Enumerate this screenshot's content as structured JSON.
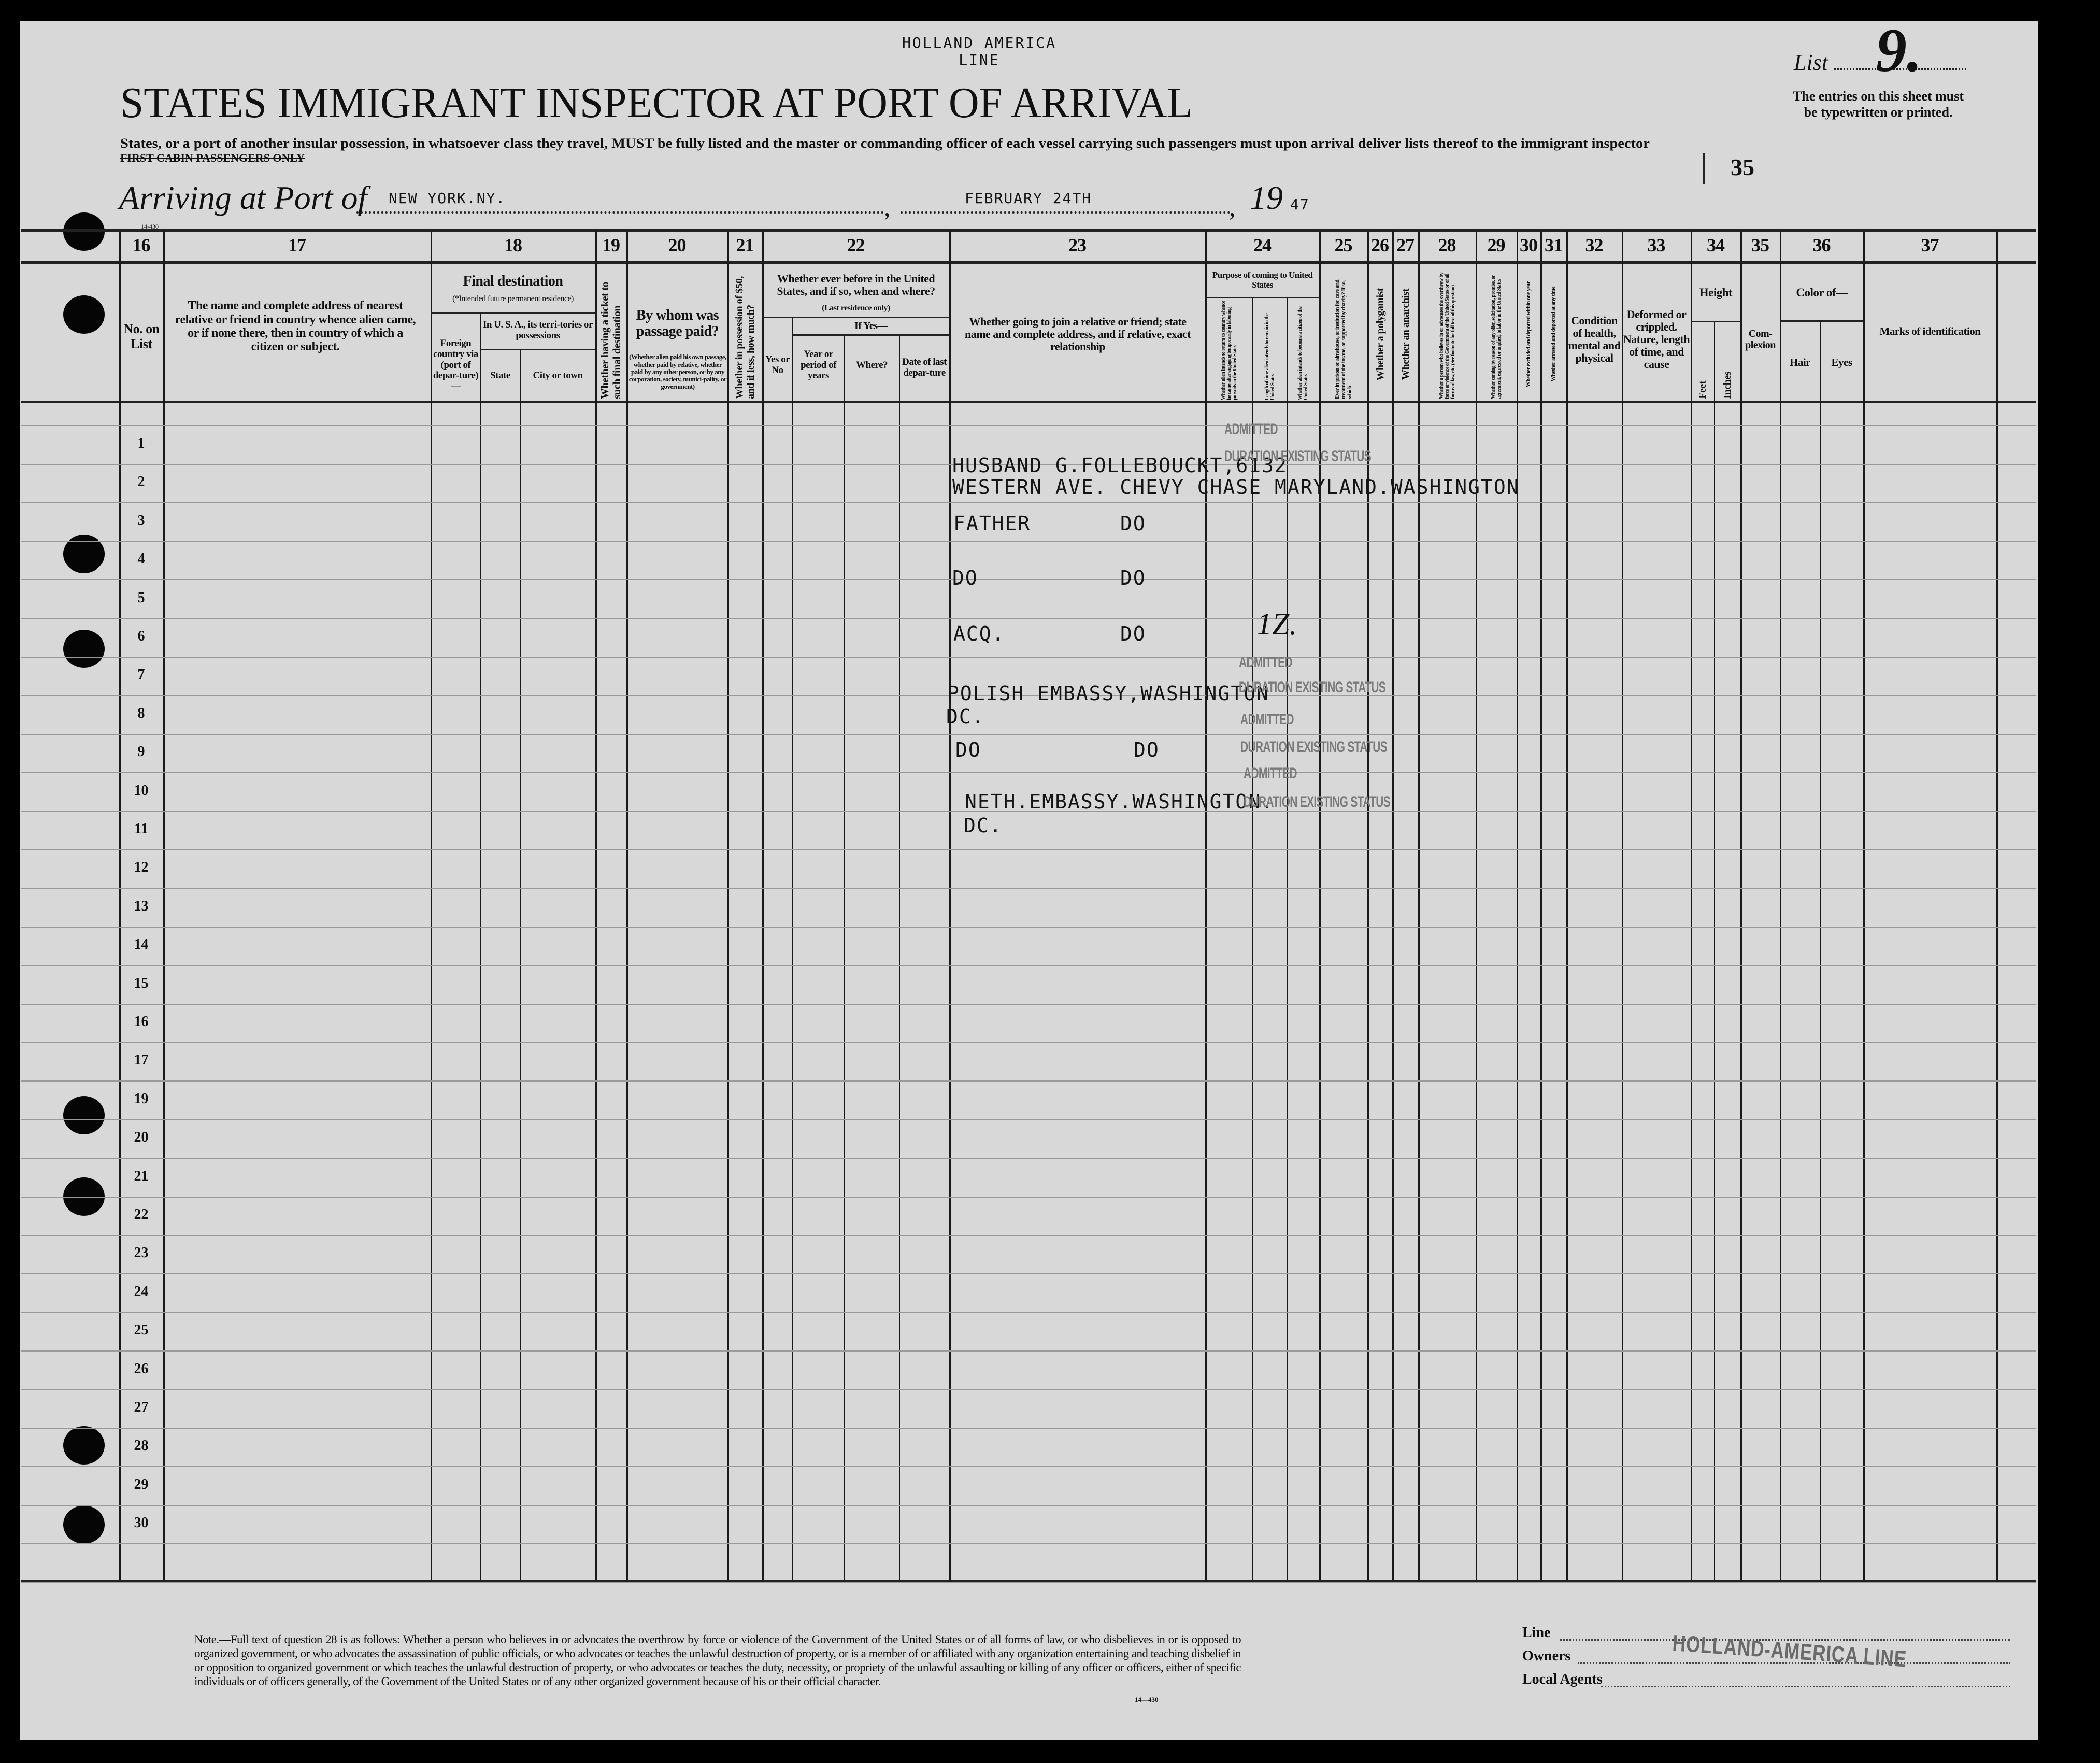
{
  "header": {
    "line_name": "HOLLAND AMERICA LINE",
    "title": "STATES IMMIGRANT INSPECTOR AT PORT OF ARRIVAL",
    "instruction": "States, or a port of another insular possession, in whatsoever class they travel, MUST be fully listed and the master or commanding officer of each vessel carrying such passengers must upon arrival deliver lists thereof to the immigrant inspector",
    "cabin_class": "FIRST CABIN PASSENGERS ONLY",
    "arriving_label": "Arriving at Port of",
    "port": "NEW YORK.NY.",
    "date": "FEBRUARY 24TH",
    "year_prefix": "19",
    "year": "47",
    "list_label": "List",
    "list_number": "9.",
    "entries_note_1": "The entries on this sheet must",
    "entries_note_2": "be typewritten or printed.",
    "sheet_count": "35",
    "form_code": "14-430"
  },
  "columns": {
    "c16": {
      "num": "16",
      "label": "No. on List"
    },
    "c17": {
      "num": "17",
      "label": "The name and complete address of nearest relative or friend in country whence alien came, or if none there, then in country of which a citizen or subject."
    },
    "c18": {
      "num": "18",
      "label": "Final destination",
      "note": "(*Intended future permanent residence)",
      "foreign": "Foreign country via (port of depar-ture)—",
      "usa": "In U. S. A., its terri-tories or possessions",
      "state": "State",
      "city": "City or town"
    },
    "c19": {
      "num": "19",
      "label": "Whether having a ticket to such final destination"
    },
    "c20": {
      "num": "20",
      "label": "By whom was passage paid?",
      "note": "(Whether alien paid his own passage, whether paid by relative, whether paid by any other person, or by any corporation, society, munici-pality, or government)"
    },
    "c21": {
      "num": "21",
      "label": "Whether in possession of $50, and if less, how much?"
    },
    "c22": {
      "num": "22",
      "label": "Whether ever before in the United States, and if so, when and where?",
      "note": "(Last residence only)",
      "if_yes": "If Yes—",
      "yes_no": "Yes or No",
      "years": "Year or period of years",
      "where": "Where?",
      "date": "Date of last depar-ture"
    },
    "c23": {
      "num": "23",
      "label": "Whether going to join a relative or friend; state name and complete address, and if relative, exact relationship"
    },
    "c24": {
      "num": "24",
      "label": "Purpose of coming to United States",
      "a": "Whether alien intends to return to country whence he came after engaging temporarily in laboring pursuits in the United States",
      "b": "Length of time alien intends to remain in the United States",
      "c": "Whether alien intends to become a citizen of the United States"
    },
    "c25": {
      "num": "25",
      "label": "Ever in prison or almshouse, or institution for care and treatment of the insane, or supported by charity? If so, which"
    },
    "c26": {
      "num": "26",
      "label": "Whether a polygamist"
    },
    "c27": {
      "num": "27",
      "label": "Whether an anarchist"
    },
    "c28": {
      "num": "28",
      "label": "Whether a person who believes in or advocates the overthrow by force or violence of the Government of the United States or of all forms of law, etc. (See footnote for full text of this question)"
    },
    "c29": {
      "num": "29",
      "label": "Whether coming by reason of any offer, solicitation, promise, or agreement, expressed or implied, to labor in the United States"
    },
    "c30": {
      "num": "30",
      "label": "Whether excluded and deported within one year"
    },
    "c31": {
      "num": "31",
      "label": "Whether arrested and deported at any time"
    },
    "c32": {
      "num": "32",
      "label": "Condition of health, mental and physical"
    },
    "c33": {
      "num": "33",
      "label": "Deformed or crippled. Nature, length of time, and cause"
    },
    "c34": {
      "num": "34",
      "label": "Height",
      "feet": "Feet",
      "inches": "Inches"
    },
    "c35": {
      "num": "35",
      "label": "Com-plexion"
    },
    "c36": {
      "num": "36",
      "label": "Color of—",
      "hair": "Hair",
      "eyes": "Eyes"
    },
    "c37": {
      "num": "37",
      "label": "Marks of identification"
    }
  },
  "row_numbers": [
    "1",
    "2",
    "3",
    "4",
    "5",
    "6",
    "7",
    "8",
    "9",
    "10",
    "11",
    "12",
    "13",
    "14",
    "15",
    "16",
    "17",
    "19",
    "20",
    "21",
    "22",
    "23",
    "24",
    "25",
    "26",
    "27",
    "28",
    "29",
    "30"
  ],
  "entries": {
    "e1a": "HUSBAND G.FOLLEBOUCKT,6132",
    "e1b": "WESTERN AVE. CHEVY CHASE MARYLAND.WASHINGTON",
    "e2_rel": "FATHER",
    "e2_addr": "DO",
    "e3_rel": "DO",
    "e3_addr": "DO",
    "e4_rel": "ACQ.",
    "e4_addr": "DO",
    "e5a": "POLISH EMBASSY,WASHINGTON",
    "e5b": "DC.",
    "e6_rel": "DO",
    "e6_addr": "DO",
    "e7a": "NETH.EMBASSY.WASHINGTON.",
    "e7b": "DC.",
    "handwritten": "1Z."
  },
  "stamps": {
    "admitted": "ADMITTED",
    "duration": "DURATION EXISTING STATUS"
  },
  "footer": {
    "note": "Note.—Full text of question 28 is as follows: Whether a person who believes in or advocates the overthrow by force or violence of the Government of the United States or of all forms of law, or who disbelieves in or is opposed to organized government, or who advocates the assassination of public officials, or who advocates or teaches the unlawful destruction of property, or is a member of or affiliated with any organization entertaining and teaching disbelief in or opposition to organized government or which teaches the unlawful destruction of property, or who advocates or teaches the duty, necessity, or propriety of the unlawful assaulting or killing of any officer or officers, either of specific individuals or of officers generally, of the Government of the United States or of any other organized government because of his or their official character.",
    "form_code": "14—430",
    "line_label": "Line",
    "owners_label": "Owners",
    "agents_label": "Local Agents",
    "line_stamp": "HOLLAND-AMERICA LINE"
  }
}
